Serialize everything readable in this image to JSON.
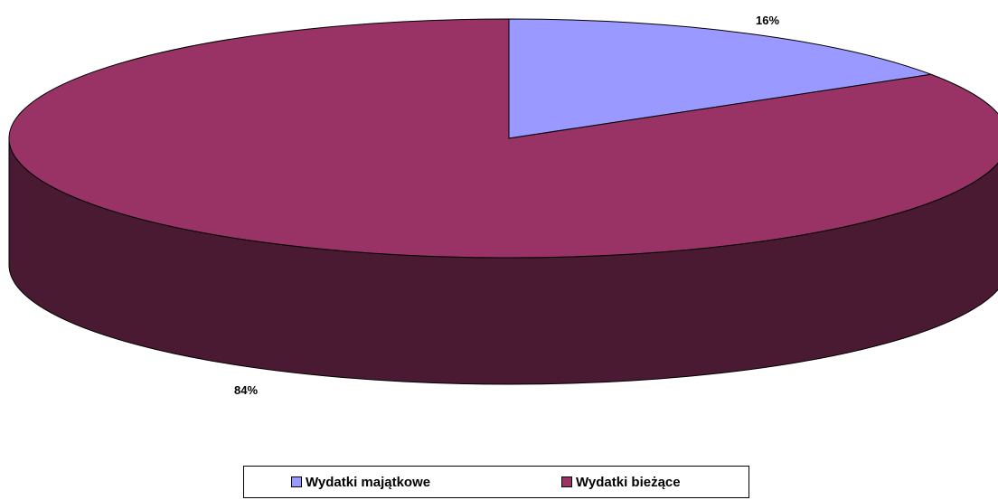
{
  "chart_data": {
    "type": "pie",
    "style": "3d",
    "title": "",
    "categories": [
      "Wydatki majątkowe",
      "Wydatki bieżące"
    ],
    "values": [
      16,
      84
    ],
    "labels": [
      "16%",
      "84%"
    ],
    "colors": [
      "#9999FF",
      "#993366"
    ],
    "side_colors": [
      "#6B6BB3",
      "#4A1A32"
    ],
    "legend_position": "bottom"
  }
}
